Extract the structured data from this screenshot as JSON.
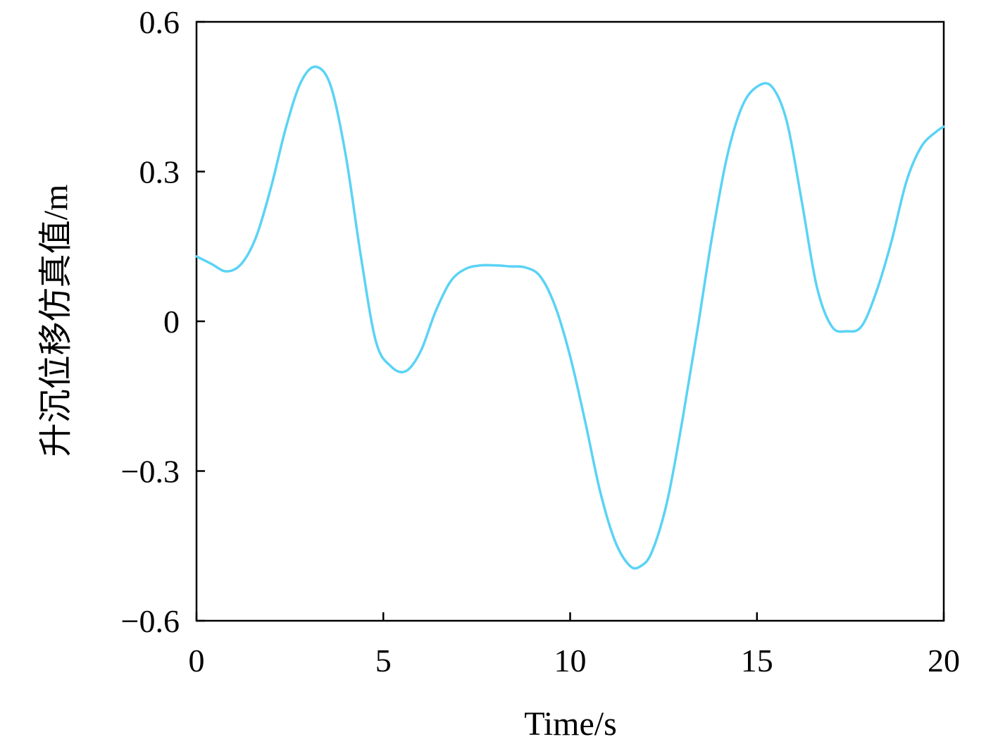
{
  "chart_data": {
    "type": "line",
    "title": "",
    "xlabel": "Time/s",
    "ylabel": "升沉位移仿真值/m",
    "xlim": [
      0,
      20
    ],
    "ylim": [
      -0.6,
      0.6
    ],
    "x_ticks": [
      {
        "value": 0,
        "label": "0"
      },
      {
        "value": 5,
        "label": "5"
      },
      {
        "value": 10,
        "label": "10"
      },
      {
        "value": 15,
        "label": "15"
      },
      {
        "value": 20,
        "label": "20"
      }
    ],
    "y_ticks": [
      {
        "value": 0.6,
        "label": "0.6"
      },
      {
        "value": 0.3,
        "label": "0.3"
      },
      {
        "value": 0,
        "label": "0"
      },
      {
        "value": -0.3,
        "label": "−0.3"
      },
      {
        "value": -0.6,
        "label": "−0.6"
      }
    ],
    "grid": false,
    "legend": "none",
    "series": [
      {
        "color": "#5ad3f5",
        "x": [
          0,
          0.4,
          0.8,
          1.2,
          1.6,
          2.0,
          2.4,
          2.8,
          3.2,
          3.6,
          4.0,
          4.4,
          4.8,
          5.2,
          5.6,
          6.0,
          6.4,
          6.8,
          7.2,
          7.6,
          8.0,
          8.4,
          8.8,
          9.2,
          9.6,
          10.0,
          10.4,
          10.8,
          11.2,
          11.6,
          11.9,
          12.2,
          12.6,
          13.0,
          13.4,
          13.8,
          14.2,
          14.6,
          15.0,
          15.4,
          15.8,
          16.2,
          16.6,
          17.0,
          17.4,
          17.8,
          18.2,
          18.6,
          19.0,
          19.4,
          19.8,
          20.0
        ],
        "y": [
          0.13,
          0.115,
          0.1,
          0.115,
          0.17,
          0.27,
          0.39,
          0.48,
          0.51,
          0.47,
          0.33,
          0.13,
          -0.04,
          -0.09,
          -0.1,
          -0.06,
          0.02,
          0.08,
          0.105,
          0.112,
          0.112,
          0.11,
          0.108,
          0.09,
          0.03,
          -0.07,
          -0.2,
          -0.34,
          -0.44,
          -0.49,
          -0.49,
          -0.46,
          -0.36,
          -0.2,
          -0.02,
          0.17,
          0.33,
          0.43,
          0.47,
          0.47,
          0.4,
          0.24,
          0.07,
          -0.01,
          -0.02,
          -0.01,
          0.06,
          0.16,
          0.28,
          0.35,
          0.38,
          0.39
        ]
      }
    ]
  }
}
